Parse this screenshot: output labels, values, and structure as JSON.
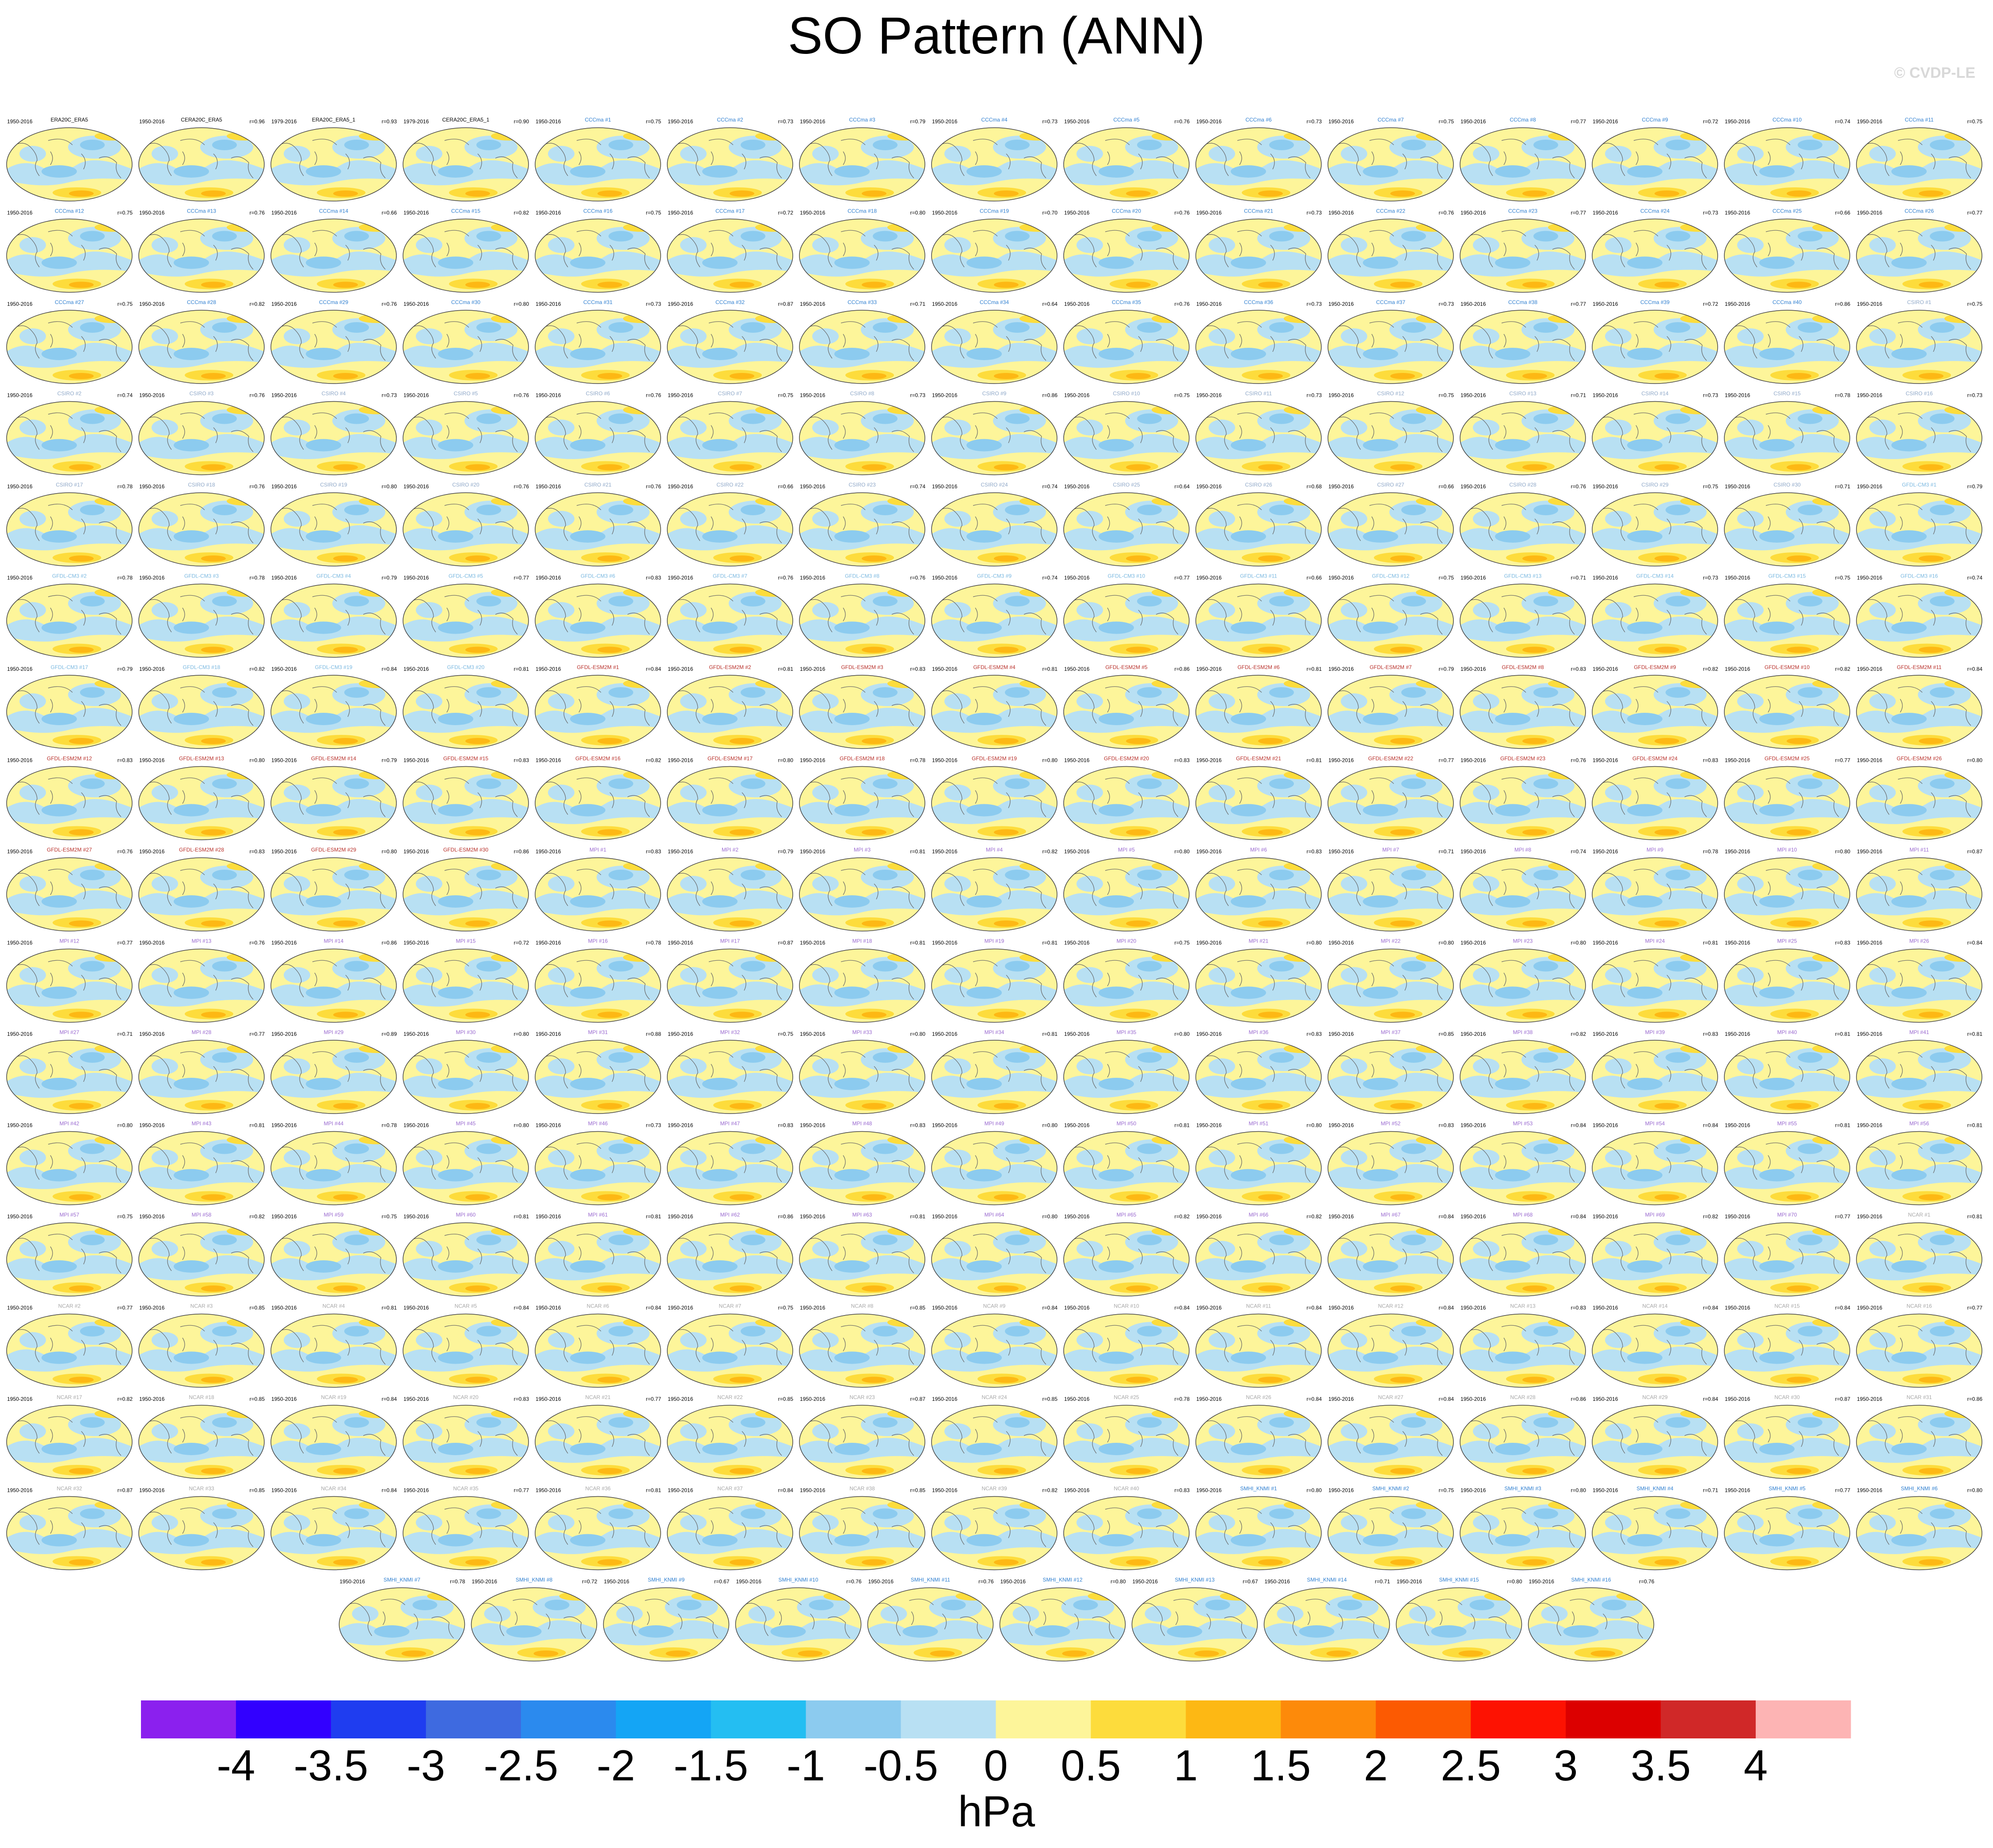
{
  "chart_data": {
    "type": "map-panels",
    "title": "SO Pattern (ANN)",
    "credit": "© CVDP-LE",
    "panel_groups": [
      {
        "color": "#000000",
        "names": [
          "ERA20C_ERA5",
          "CERA20C_ERA5",
          "ERA20C_ERA5_1",
          "CERA20C_ERA5_1"
        ],
        "periods": [
          "1950-2016",
          "1950-2016",
          "1979-2016",
          "1979-2016"
        ],
        "r": [
          null,
          "r=0.96",
          "r=0.93",
          "r=0.90"
        ]
      },
      {
        "color": "#2f7fd0",
        "names": [
          "CCCma #1",
          "CCCma #2",
          "CCCma #3",
          "CCCma #4",
          "CCCma #5",
          "CCCma #6",
          "CCCma #7",
          "CCCma #8",
          "CCCma #9",
          "CCCma #10",
          "CCCma #11",
          "CCCma #12",
          "CCCma #13",
          "CCCma #14",
          "CCCma #15",
          "CCCma #16",
          "CCCma #17",
          "CCCma #18",
          "CCCma #19",
          "CCCma #20",
          "CCCma #21",
          "CCCma #22",
          "CCCma #23",
          "CCCma #24",
          "CCCma #25",
          "CCCma #26",
          "CCCma #27",
          "CCCma #28",
          "CCCma #29",
          "CCCma #30",
          "CCCma #31",
          "CCCma #32",
          "CCCma #33",
          "CCCma #34",
          "CCCma #35",
          "CCCma #36",
          "CCCma #37",
          "CCCma #38",
          "CCCma #39",
          "CCCma #40"
        ],
        "periods": [
          "1950-2016",
          "1950-2016",
          "1950-2016",
          "1950-2016",
          "1950-2016",
          "1950-2016",
          "1950-2016",
          "1950-2016",
          "1950-2016",
          "1950-2016",
          "1950-2016",
          "1950-2016",
          "1950-2016",
          "1950-2016",
          "1950-2016",
          "1950-2016",
          "1950-2016",
          "1950-2016",
          "1950-2016",
          "1950-2016",
          "1950-2016",
          "1950-2016",
          "1950-2016",
          "1950-2016",
          "1950-2016",
          "1950-2016",
          "1950-2016",
          "1950-2016",
          "1950-2016",
          "1950-2016",
          "1950-2016",
          "1950-2016",
          "1950-2016",
          "1950-2016",
          "1950-2016",
          "1950-2016",
          "1950-2016",
          "1950-2016",
          "1950-2016",
          "1950-2016"
        ],
        "r": [
          "r=0.75",
          "r=0.73",
          "r=0.79",
          "r=0.73",
          "r=0.76",
          "r=0.73",
          "r=0.75",
          "r=0.77",
          "r=0.72",
          "r=0.74",
          "r=0.75",
          "r=0.75",
          "r=0.76",
          "r=0.66",
          "r=0.82",
          "r=0.75",
          "r=0.72",
          "r=0.80",
          "r=0.70",
          "r=0.76",
          "r=0.73",
          "r=0.76",
          "r=0.77",
          "r=0.73",
          "r=0.66",
          "r=0.77",
          "r=0.75",
          "r=0.82",
          "r=0.76",
          "r=0.80",
          "r=0.73",
          "r=0.87",
          "r=0.71",
          "r=0.64",
          "r=0.76",
          "r=0.73",
          "r=0.73",
          "r=0.77",
          "r=0.72",
          "r=0.86"
        ]
      },
      {
        "color": "#8fa8c8",
        "names": [
          "CSIRO #1",
          "CSIRO #2",
          "CSIRO #3",
          "CSIRO #4",
          "CSIRO #5",
          "CSIRO #6",
          "CSIRO #7",
          "CSIRO #8",
          "CSIRO #9",
          "CSIRO #10",
          "CSIRO #11",
          "CSIRO #12",
          "CSIRO #13",
          "CSIRO #14",
          "CSIRO #15",
          "CSIRO #16",
          "CSIRO #17",
          "CSIRO #18",
          "CSIRO #19",
          "CSIRO #20",
          "CSIRO #21",
          "CSIRO #22",
          "CSIRO #23",
          "CSIRO #24",
          "CSIRO #25",
          "CSIRO #26",
          "CSIRO #27",
          "CSIRO #28",
          "CSIRO #29",
          "CSIRO #30"
        ],
        "periods": [
          "1950-2016",
          "1950-2016",
          "1950-2016",
          "1950-2016",
          "1950-2016",
          "1950-2016",
          "1950-2016",
          "1950-2016",
          "1950-2016",
          "1950-2016",
          "1950-2016",
          "1950-2016",
          "1950-2016",
          "1950-2016",
          "1950-2016",
          "1950-2016",
          "1950-2016",
          "1950-2016",
          "1950-2016",
          "1950-2016",
          "1950-2016",
          "1950-2016",
          "1950-2016",
          "1950-2016",
          "1950-2016",
          "1950-2016",
          "1950-2016",
          "1950-2016",
          "1950-2016",
          "1950-2016"
        ],
        "r": [
          "r=0.75",
          "r=0.74",
          "r=0.76",
          "r=0.73",
          "r=0.76",
          "r=0.76",
          "r=0.75",
          "r=0.73",
          "r=0.86",
          "r=0.75",
          "r=0.73",
          "r=0.75",
          "r=0.71",
          "r=0.73",
          "r=0.78",
          "r=0.73",
          "r=0.78",
          "r=0.76",
          "r=0.80",
          "r=0.76",
          "r=0.76",
          "r=0.66",
          "r=0.74",
          "r=0.74",
          "r=0.64",
          "r=0.68",
          "r=0.66",
          "r=0.76",
          "r=0.75",
          "r=0.71"
        ]
      },
      {
        "color": "#7ab8e0",
        "names": [
          "GFDL-CM3 #1",
          "GFDL-CM3 #2",
          "GFDL-CM3 #3",
          "GFDL-CM3 #4",
          "GFDL-CM3 #5",
          "GFDL-CM3 #6",
          "GFDL-CM3 #7",
          "GFDL-CM3 #8",
          "GFDL-CM3 #9",
          "GFDL-CM3 #10",
          "GFDL-CM3 #11",
          "GFDL-CM3 #12",
          "GFDL-CM3 #13",
          "GFDL-CM3 #14",
          "GFDL-CM3 #15",
          "GFDL-CM3 #16",
          "GFDL-CM3 #17",
          "GFDL-CM3 #18",
          "GFDL-CM3 #19",
          "GFDL-CM3 #20"
        ],
        "periods": [
          "1950-2016",
          "1950-2016",
          "1950-2016",
          "1950-2016",
          "1950-2016",
          "1950-2016",
          "1950-2016",
          "1950-2016",
          "1950-2016",
          "1950-2016",
          "1950-2016",
          "1950-2016",
          "1950-2016",
          "1950-2016",
          "1950-2016",
          "1950-2016",
          "1950-2016",
          "1950-2016",
          "1950-2016",
          "1950-2016"
        ],
        "r": [
          "r=0.79",
          "r=0.78",
          "r=0.78",
          "r=0.79",
          "r=0.77",
          "r=0.83",
          "r=0.76",
          "r=0.76",
          "r=0.74",
          "r=0.77",
          "r=0.66",
          "r=0.75",
          "r=0.71",
          "r=0.73",
          "r=0.75",
          "r=0.74",
          "r=0.79",
          "r=0.82",
          "r=0.84",
          "r=0.81"
        ]
      },
      {
        "color": "#b8302a",
        "names": [
          "GFDL-ESM2M #1",
          "GFDL-ESM2M #2",
          "GFDL-ESM2M #3",
          "GFDL-ESM2M #4",
          "GFDL-ESM2M #5",
          "GFDL-ESM2M #6",
          "GFDL-ESM2M #7",
          "GFDL-ESM2M #8",
          "GFDL-ESM2M #9",
          "GFDL-ESM2M #10",
          "GFDL-ESM2M #11",
          "GFDL-ESM2M #12",
          "GFDL-ESM2M #13",
          "GFDL-ESM2M #14",
          "GFDL-ESM2M #15",
          "GFDL-ESM2M #16",
          "GFDL-ESM2M #17",
          "GFDL-ESM2M #18",
          "GFDL-ESM2M #19",
          "GFDL-ESM2M #20",
          "GFDL-ESM2M #21",
          "GFDL-ESM2M #22",
          "GFDL-ESM2M #23",
          "GFDL-ESM2M #24",
          "GFDL-ESM2M #25",
          "GFDL-ESM2M #26",
          "GFDL-ESM2M #27",
          "GFDL-ESM2M #28",
          "GFDL-ESM2M #29",
          "GFDL-ESM2M #30"
        ],
        "periods": [
          "1950-2016",
          "1950-2016",
          "1950-2016",
          "1950-2016",
          "1950-2016",
          "1950-2016",
          "1950-2016",
          "1950-2016",
          "1950-2016",
          "1950-2016",
          "1950-2016",
          "1950-2016",
          "1950-2016",
          "1950-2016",
          "1950-2016",
          "1950-2016",
          "1950-2016",
          "1950-2016",
          "1950-2016",
          "1950-2016",
          "1950-2016",
          "1950-2016",
          "1950-2016",
          "1950-2016",
          "1950-2016",
          "1950-2016",
          "1950-2016",
          "1950-2016",
          "1950-2016",
          "1950-2016"
        ],
        "r": [
          "r=0.84",
          "r=0.81",
          "r=0.83",
          "r=0.81",
          "r=0.86",
          "r=0.81",
          "r=0.79",
          "r=0.83",
          "r=0.82",
          "r=0.82",
          "r=0.84",
          "r=0.83",
          "r=0.80",
          "r=0.79",
          "r=0.83",
          "r=0.82",
          "r=0.80",
          "r=0.78",
          "r=0.80",
          "r=0.83",
          "r=0.81",
          "r=0.77",
          "r=0.76",
          "r=0.83",
          "r=0.77",
          "r=0.80",
          "r=0.76",
          "r=0.83",
          "r=0.80",
          "r=0.86"
        ]
      },
      {
        "color": "#9a6ad0",
        "names": [
          "MPI #1",
          "MPI #2",
          "MPI #3",
          "MPI #4",
          "MPI #5",
          "MPI #6",
          "MPI #7",
          "MPI #8",
          "MPI #9",
          "MPI #10",
          "MPI #11",
          "MPI #12",
          "MPI #13",
          "MPI #14",
          "MPI #15",
          "MPI #16",
          "MPI #17",
          "MPI #18",
          "MPI #19",
          "MPI #20",
          "MPI #21",
          "MPI #22",
          "MPI #23",
          "MPI #24",
          "MPI #25",
          "MPI #26",
          "MPI #27",
          "MPI #28",
          "MPI #29",
          "MPI #30",
          "MPI #31",
          "MPI #32",
          "MPI #33",
          "MPI #34",
          "MPI #35",
          "MPI #36",
          "MPI #37",
          "MPI #38",
          "MPI #39",
          "MPI #40",
          "MPI #41",
          "MPI #42",
          "MPI #43",
          "MPI #44",
          "MPI #45",
          "MPI #46",
          "MPI #47",
          "MPI #48",
          "MPI #49",
          "MPI #50",
          "MPI #51",
          "MPI #52",
          "MPI #53",
          "MPI #54",
          "MPI #55",
          "MPI #56",
          "MPI #57",
          "MPI #58",
          "MPI #59",
          "MPI #60",
          "MPI #61",
          "MPI #62",
          "MPI #63",
          "MPI #64",
          "MPI #65",
          "MPI #66",
          "MPI #67",
          "MPI #68",
          "MPI #69",
          "MPI #70"
        ],
        "periods": [
          "1950-2016",
          "1950-2016",
          "1950-2016",
          "1950-2016",
          "1950-2016",
          "1950-2016",
          "1950-2016",
          "1950-2016",
          "1950-2016",
          "1950-2016",
          "1950-2016",
          "1950-2016",
          "1950-2016",
          "1950-2016",
          "1950-2016",
          "1950-2016",
          "1950-2016",
          "1950-2016",
          "1950-2016",
          "1950-2016",
          "1950-2016",
          "1950-2016",
          "1950-2016",
          "1950-2016",
          "1950-2016",
          "1950-2016",
          "1950-2016",
          "1950-2016",
          "1950-2016",
          "1950-2016",
          "1950-2016",
          "1950-2016",
          "1950-2016",
          "1950-2016",
          "1950-2016",
          "1950-2016",
          "1950-2016",
          "1950-2016",
          "1950-2016",
          "1950-2016",
          "1950-2016",
          "1950-2016",
          "1950-2016",
          "1950-2016",
          "1950-2016",
          "1950-2016",
          "1950-2016",
          "1950-2016",
          "1950-2016",
          "1950-2016",
          "1950-2016",
          "1950-2016",
          "1950-2016",
          "1950-2016",
          "1950-2016",
          "1950-2016",
          "1950-2016",
          "1950-2016",
          "1950-2016",
          "1950-2016",
          "1950-2016",
          "1950-2016",
          "1950-2016",
          "1950-2016",
          "1950-2016",
          "1950-2016",
          "1950-2016",
          "1950-2016",
          "1950-2016",
          "1950-2016"
        ],
        "r": [
          "r=0.83",
          "r=0.79",
          "r=0.81",
          "r=0.82",
          "r=0.80",
          "r=0.83",
          "r=0.71",
          "r=0.74",
          "r=0.78",
          "r=0.80",
          "r=0.87",
          "r=0.77",
          "r=0.76",
          "r=0.86",
          "r=0.72",
          "r=0.78",
          "r=0.87",
          "r=0.81",
          "r=0.81",
          "r=0.75",
          "r=0.80",
          "r=0.80",
          "r=0.80",
          "r=0.81",
          "r=0.83",
          "r=0.84",
          "r=0.71",
          "r=0.77",
          "r=0.89",
          "r=0.80",
          "r=0.88",
          "r=0.75",
          "r=0.80",
          "r=0.81",
          "r=0.80",
          "r=0.83",
          "r=0.85",
          "r=0.82",
          "r=0.83",
          "r=0.81",
          "r=0.81",
          "r=0.80",
          "r=0.81",
          "r=0.78",
          "r=0.80",
          "r=0.73",
          "r=0.83",
          "r=0.83",
          "r=0.80",
          "r=0.81",
          "r=0.80",
          "r=0.83",
          "r=0.84",
          "r=0.84",
          "r=0.81",
          "r=0.81",
          "r=0.75",
          "r=0.82",
          "r=0.75",
          "r=0.81",
          "r=0.81",
          "r=0.86",
          "r=0.81",
          "r=0.80",
          "r=0.82",
          "r=0.82",
          "r=0.84",
          "r=0.84",
          "r=0.82",
          "r=0.77"
        ]
      },
      {
        "color": "#a8a8a8",
        "names": [
          "NCAR #1",
          "NCAR #2",
          "NCAR #3",
          "NCAR #4",
          "NCAR #5",
          "NCAR #6",
          "NCAR #7",
          "NCAR #8",
          "NCAR #9",
          "NCAR #10",
          "NCAR #11",
          "NCAR #12",
          "NCAR #13",
          "NCAR #14",
          "NCAR #15",
          "NCAR #16",
          "NCAR #17",
          "NCAR #18",
          "NCAR #19",
          "NCAR #20",
          "NCAR #21",
          "NCAR #22",
          "NCAR #23",
          "NCAR #24",
          "NCAR #25",
          "NCAR #26",
          "NCAR #27",
          "NCAR #28",
          "NCAR #29",
          "NCAR #30",
          "NCAR #31",
          "NCAR #32",
          "NCAR #33",
          "NCAR #34",
          "NCAR #35",
          "NCAR #36",
          "NCAR #37",
          "NCAR #38",
          "NCAR #39",
          "NCAR #40"
        ],
        "periods": [
          "1950-2016",
          "1950-2016",
          "1950-2016",
          "1950-2016",
          "1950-2016",
          "1950-2016",
          "1950-2016",
          "1950-2016",
          "1950-2016",
          "1950-2016",
          "1950-2016",
          "1950-2016",
          "1950-2016",
          "1950-2016",
          "1950-2016",
          "1950-2016",
          "1950-2016",
          "1950-2016",
          "1950-2016",
          "1950-2016",
          "1950-2016",
          "1950-2016",
          "1950-2016",
          "1950-2016",
          "1950-2016",
          "1950-2016",
          "1950-2016",
          "1950-2016",
          "1950-2016",
          "1950-2016",
          "1950-2016",
          "1950-2016",
          "1950-2016",
          "1950-2016",
          "1950-2016",
          "1950-2016",
          "1950-2016",
          "1950-2016",
          "1950-2016",
          "1950-2016"
        ],
        "r": [
          "r=0.81",
          "r=0.77",
          "r=0.85",
          "r=0.81",
          "r=0.84",
          "r=0.84",
          "r=0.75",
          "r=0.85",
          "r=0.84",
          "r=0.84",
          "r=0.84",
          "r=0.84",
          "r=0.83",
          "r=0.84",
          "r=0.84",
          "r=0.77",
          "r=0.82",
          "r=0.85",
          "r=0.84",
          "r=0.83",
          "r=0.77",
          "r=0.85",
          "r=0.87",
          "r=0.85",
          "r=0.78",
          "r=0.84",
          "r=0.84",
          "r=0.86",
          "r=0.84",
          "r=0.87",
          "r=0.86",
          "r=0.87",
          "r=0.85",
          "r=0.84",
          "r=0.77",
          "r=0.81",
          "r=0.84",
          "r=0.85",
          "r=0.82",
          "r=0.83"
        ]
      },
      {
        "color": "#2f7fd0",
        "names": [
          "SMHI_KNMI #1",
          "SMHI_KNMI #2",
          "SMHI_KNMI #3",
          "SMHI_KNMI #4",
          "SMHI_KNMI #5",
          "SMHI_KNMI #6",
          "SMHI_KNMI #7",
          "SMHI_KNMI #8",
          "SMHI_KNMI #9",
          "SMHI_KNMI #10",
          "SMHI_KNMI #11",
          "SMHI_KNMI #12",
          "SMHI_KNMI #13",
          "SMHI_KNMI #14",
          "SMHI_KNMI #15",
          "SMHI_KNMI #16"
        ],
        "periods": [
          "1950-2016",
          "1950-2016",
          "1950-2016",
          "1950-2016",
          "1950-2016",
          "1950-2016",
          "1950-2016",
          "1950-2016",
          "1950-2016",
          "1950-2016",
          "1950-2016",
          "1950-2016",
          "1950-2016",
          "1950-2016",
          "1950-2016",
          "1950-2016"
        ],
        "r": [
          "r=0.80",
          "r=0.75",
          "r=0.80",
          "r=0.71",
          "r=0.77",
          "r=0.80",
          "r=0.78",
          "r=0.72",
          "r=0.67",
          "r=0.76",
          "r=0.76",
          "r=0.80",
          "r=0.67",
          "r=0.71",
          "r=0.80",
          "r=0.76"
        ]
      }
    ],
    "colorbar": {
      "colors": [
        "#8b20ee",
        "#3200ff",
        "#1f3df0",
        "#3e6ae0",
        "#2b8aee",
        "#14a5f5",
        "#24bef2",
        "#8ccbef",
        "#b8e0f3",
        "#fdf59a",
        "#fddc3c",
        "#fdb814",
        "#fd8a0a",
        "#fc5a02",
        "#fd1202",
        "#dc0000",
        "#d02828",
        "#fdb4b4"
      ],
      "ticks": [
        -4,
        -3.5,
        -3,
        -2.5,
        -2,
        -1.5,
        -1,
        -0.5,
        0,
        0.5,
        1,
        1.5,
        2,
        2.5,
        3,
        3.5,
        4
      ],
      "label": "hPa"
    }
  }
}
